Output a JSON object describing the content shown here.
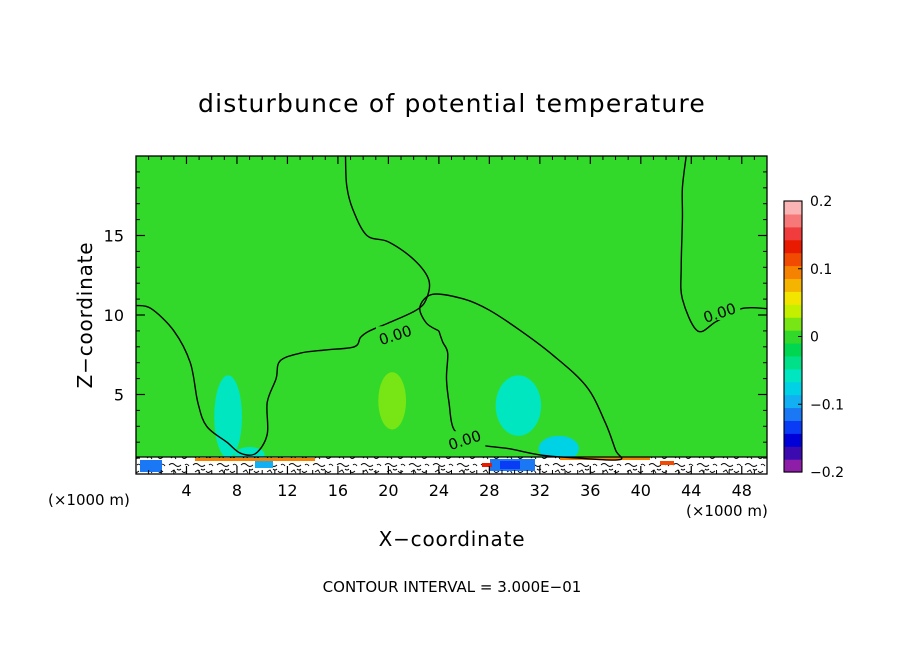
{
  "chart_data": {
    "type": "heatmap",
    "title": "disturbunce of potential temperature",
    "xlabel": "X−coordinate",
    "ylabel": "Z−coordinate",
    "x_unit_left": "(×1000 m)",
    "x_unit_right": "(×1000 m)",
    "footer": "CONTOUR INTERVAL = 3.000E−01",
    "xlim": [
      0,
      50
    ],
    "ylim": [
      0,
      20
    ],
    "x_ticks": [
      4,
      8,
      12,
      16,
      20,
      24,
      28,
      32,
      36,
      40,
      44,
      48
    ],
    "y_ticks": [
      5,
      10,
      15
    ],
    "colorbar": {
      "range": [
        -0.2,
        0.2
      ],
      "tick_values": [
        0.2,
        0.1,
        0,
        -0.1,
        -0.2
      ],
      "tick_labels": [
        "0.2",
        "0.1",
        "0",
        "−0.1",
        "−0.2"
      ],
      "colors": [
        "#8e1ea8",
        "#3b0bb0",
        "#0000d8",
        "#0a3cf5",
        "#1a78f5",
        "#12b0f2",
        "#00d2e6",
        "#00e6c0",
        "#00e088",
        "#00d650",
        "#33d92a",
        "#78e614",
        "#c4f000",
        "#f2e600",
        "#f5b400",
        "#f58200",
        "#f04b00",
        "#e81a00",
        "#f03c3c",
        "#f77878",
        "#fab4b4"
      ]
    },
    "contour_labels": [
      {
        "text": "0.00",
        "x": 20.6,
        "y": 8.6
      },
      {
        "text": "0.00",
        "x": 26.1,
        "y": 2.0
      },
      {
        "text": "0.00",
        "x": 46.3,
        "y": 10.0
      }
    ],
    "contour_lines": [
      [
        [
          0,
          10.6
        ],
        [
          1.2,
          10.4
        ],
        [
          3.0,
          9.0
        ],
        [
          4.3,
          7.0
        ],
        [
          4.9,
          4.5
        ],
        [
          5.6,
          3.0
        ],
        [
          7.2,
          2.0
        ],
        [
          8.3,
          1.3
        ],
        [
          9.5,
          1.3
        ],
        [
          10.4,
          2.5
        ],
        [
          10.4,
          4.5
        ],
        [
          11.1,
          6.0
        ],
        [
          11.4,
          7.1
        ],
        [
          13.0,
          7.6
        ],
        [
          15.0,
          7.8
        ],
        [
          17.3,
          8.0
        ],
        [
          17.8,
          8.6
        ],
        [
          18.5,
          9.0
        ],
        [
          20.0,
          9.5
        ],
        [
          22.2,
          10.3
        ],
        [
          23.0,
          11.0
        ],
        [
          23.2,
          12.2
        ],
        [
          22.0,
          13.5
        ],
        [
          20.0,
          14.6
        ],
        [
          18.3,
          15.0
        ],
        [
          17.2,
          16.6
        ],
        [
          16.7,
          18.1
        ],
        [
          16.6,
          20.0
        ]
      ],
      [
        [
          24.0,
          9.0
        ],
        [
          23.0,
          9.5
        ],
        [
          22.5,
          10.5
        ],
        [
          23.5,
          11.3
        ],
        [
          26.0,
          11.0
        ],
        [
          28.0,
          10.3
        ],
        [
          30.5,
          9.0
        ],
        [
          33.0,
          7.5
        ],
        [
          35.7,
          5.5
        ],
        [
          37.2,
          3.2
        ],
        [
          38.0,
          1.5
        ],
        [
          38.3,
          0.9
        ],
        [
          35.0,
          1.0
        ],
        [
          32.0,
          1.2
        ],
        [
          29.5,
          1.6
        ],
        [
          27.5,
          1.8
        ],
        [
          26.5,
          2.1
        ],
        [
          25.2,
          2.8
        ],
        [
          24.8,
          4.5
        ],
        [
          24.6,
          6.0
        ],
        [
          24.7,
          7.6
        ],
        [
          24.3,
          8.3
        ],
        [
          24.0,
          9.0
        ]
      ],
      [
        [
          43.6,
          20.0
        ],
        [
          43.3,
          18.0
        ],
        [
          43.3,
          16.0
        ],
        [
          43.2,
          13.0
        ],
        [
          43.3,
          11.0
        ],
        [
          44.5,
          9.0
        ],
        [
          46.0,
          9.6
        ],
        [
          48.0,
          10.4
        ],
        [
          50.0,
          10.4
        ]
      ]
    ],
    "color_patches": [
      {
        "value": -0.06,
        "cx": 7.3,
        "cy": 3.6,
        "rx": 1.1,
        "ry": 2.6
      },
      {
        "value": 0.025,
        "cx": 20.3,
        "cy": 4.6,
        "rx": 1.1,
        "ry": 1.8
      },
      {
        "value": -0.05,
        "cx": 30.3,
        "cy": 4.3,
        "rx": 1.8,
        "ry": 1.9
      },
      {
        "value": -0.08,
        "cx": 33.5,
        "cy": 1.6,
        "rx": 1.6,
        "ry": 0.8
      },
      {
        "value": -0.05,
        "cx": 9.0,
        "cy": 1.2,
        "rx": 1.2,
        "ry": 0.5
      }
    ]
  }
}
